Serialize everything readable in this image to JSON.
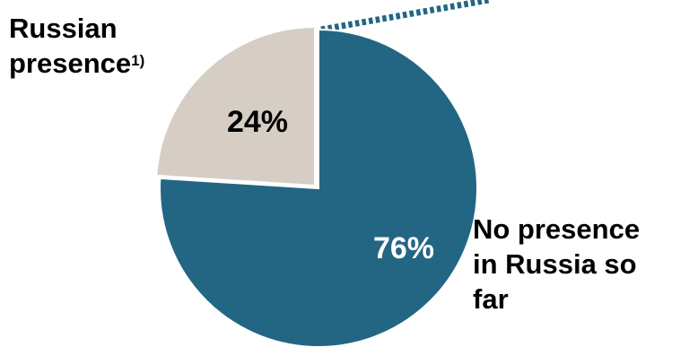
{
  "chart_data": {
    "type": "pie",
    "slices": [
      {
        "name": "No presence in Russia so far",
        "label_lines": [
          "No presence",
          "in Russia so",
          "far"
        ],
        "value": 76,
        "value_label": "76%",
        "color": "#236683",
        "value_label_color": "#ffffff"
      },
      {
        "name": "Russian presence",
        "label_lines": [
          "Russian",
          "presence"
        ],
        "footnote_marker": "1)",
        "value": 24,
        "value_label": "24%",
        "color": "#d6cdc5",
        "value_label_color": "#000000",
        "exploded": true
      }
    ],
    "start": "top, clockwise",
    "connector_color": "#236683"
  }
}
